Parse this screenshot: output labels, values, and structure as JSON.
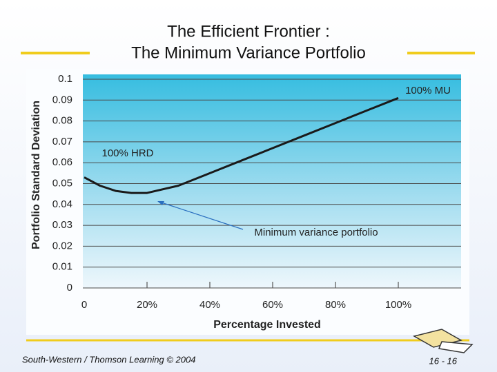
{
  "chart_data": {
    "type": "line",
    "title": "The Efficient Frontier :",
    "subtitle": "The Minimum Variance Portfolio",
    "xlabel": "Percentage Invested",
    "ylabel": "Portfolio Standard Deviation",
    "x": [
      0,
      0.05,
      0.1,
      0.15,
      0.2,
      0.3,
      0.4,
      0.5,
      0.6,
      0.7,
      0.8,
      0.9,
      1.0
    ],
    "values": [
      0.053,
      0.049,
      0.0465,
      0.0455,
      0.0455,
      0.049,
      0.055,
      0.061,
      0.067,
      0.073,
      0.079,
      0.085,
      0.091
    ],
    "color": "#1a1a1a",
    "xlim": [
      0,
      1.2
    ],
    "ylim": [
      0,
      0.1
    ],
    "xticks": [
      0,
      {
        "value": 0.2,
        "label": "20%"
      },
      {
        "value": 0.4,
        "label": "40%"
      },
      {
        "value": 0.6,
        "label": "60%"
      },
      {
        "value": 0.8,
        "label": "80%"
      },
      {
        "value": 1.0,
        "label": "100%"
      }
    ],
    "yticks": [
      0,
      0.01,
      0.02,
      0.03,
      0.04,
      0.05,
      0.06,
      0.07,
      0.08,
      0.09,
      0.1
    ],
    "grid": true,
    "annotations": [
      "100% MU",
      "100% HRD",
      "Minimum variance portfolio"
    ]
  },
  "footer": {
    "source": "South-Western / Thomson Learning © 2004",
    "page": "16 - 16"
  }
}
